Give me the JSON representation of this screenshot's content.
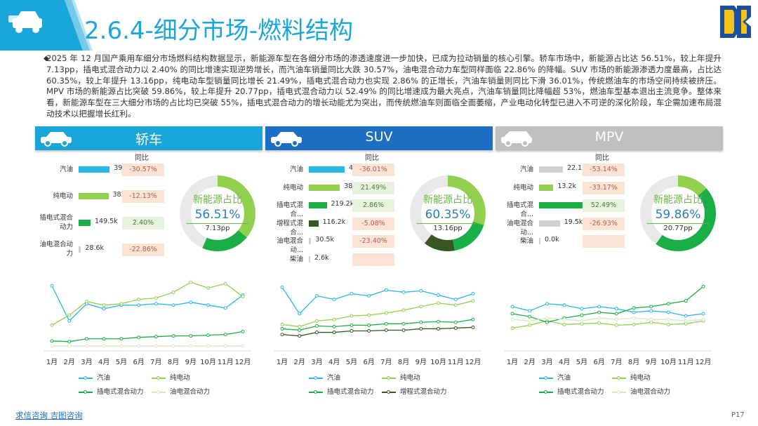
{
  "header": {
    "title": "2.6.4-细分市场-燃料结构"
  },
  "summary": "2025 年 12 月国产乘用车细分市场燃料结构数据显示，新能源车型在各细分市场的渗透速度进一步加快，已成为拉动销量的核心引擎。轿车市场中，新能源占比达 56.51%，较上年提升 7.13pp，插电式混合动力以 2.40% 的同比增速实现逆势增长，而汽油车销量同比大跌 30.57%，油电混合动力车型同样面临 22.86% 的降幅。SUV 市场的新能源渗透力度最高，占比达 60.35%，较上年提升 13.16pp，纯电动车型销量同比增长 21.49%，插电式混合动力也实现 2.86% 的正增长，汽油车销量则同比下滑 36.01%，传统燃油车的市场空间持续被挤压。MPV 市场的新能源占比突破 59.86%，较上年提升 20.77pp，插电式混合动力以 52.49% 的同比增速成为最大亮点，汽油车销量同比降幅超 53%，燃油车型基本退出主流竞争。整体来看，新能源车型在三大细分市场的占比均已突破 55%，插电式混合动力的增长动能尤为突出，而传统燃油车则面临全面萎缩，产业电动化转型已进入不可逆的深化阶段，车企需加速布局混动技术以把握增长红利。",
  "yoy_header": "同比",
  "donut_title": "新能源占比",
  "months": [
    "1月",
    "2月",
    "3月",
    "4月",
    "5月",
    "6月",
    "7月",
    "8月",
    "9月",
    "10月",
    "11月",
    "12月"
  ],
  "footer": {
    "link1": "求信咨询",
    "link2": "吉图咨询",
    "page": "P17"
  },
  "colors": {
    "blue": "#29b6e8",
    "green": "#92d050",
    "dgreen": "#1aae47",
    "darkgreen": "#375623",
    "gray": "#d0d0d0",
    "accent": "#1aa6d9"
  },
  "panels": [
    {
      "title": "轿车",
      "icon": "taxi-icon",
      "band_color": "#1aa6d9",
      "rows": [
        {
          "label": "汽油",
          "value": "395.1k",
          "yoy": "-30.57%",
          "color": "#29b6e8",
          "frac": 0.52
        },
        {
          "label": "纯电动",
          "value": "383.4k",
          "yoy": "-12.13%",
          "color": "#92d050",
          "frac": 0.5
        },
        {
          "label": "插电式混合动力",
          "value": "149.5k",
          "yoy": "2.40%",
          "color": "#1aae47",
          "frac": 0.2
        },
        {
          "label": "油电混合动力",
          "value": "28.6k",
          "yoy": "-22.86%",
          "color": "#d0d0d0",
          "frac": 0.04
        }
      ],
      "donut": {
        "value": "56.51%",
        "sub": "7.13pp",
        "bev": 0.359,
        "phev": 0.206
      },
      "chart_data": {
        "type": "line",
        "x": [
          "1月",
          "2月",
          "3月",
          "4月",
          "5月",
          "6月",
          "7月",
          "8月",
          "9月",
          "10月",
          "11月",
          "12月"
        ],
        "series": [
          {
            "name": "汽油",
            "values": [
              0.87,
              0.38,
              0.62,
              0.55,
              0.6,
              0.6,
              0.62,
              0.6,
              0.64,
              0.6,
              0.56,
              0.74
            ]
          },
          {
            "name": "纯电动",
            "values": [
              0.32,
              0.46,
              0.65,
              0.6,
              0.62,
              0.68,
              0.7,
              0.78,
              0.92,
              0.84,
              0.9,
              0.72
            ]
          },
          {
            "name": "插电式混合动力",
            "values": [
              0.1,
              0.09,
              0.13,
              0.13,
              0.13,
              0.15,
              0.16,
              0.17,
              0.17,
              0.18,
              0.19,
              0.23
            ]
          },
          {
            "name": "油电混合动力",
            "values": [
              0.03,
              0.03,
              0.03,
              0.03,
              0.03,
              0.03,
              0.03,
              0.03,
              0.03,
              0.03,
              0.03,
              0.03
            ]
          }
        ]
      },
      "legend": [
        "汽油",
        "纯电动",
        "插电式混合动力",
        "油电混合动力"
      ]
    },
    {
      "title": "SUV",
      "icon": "suv-icon",
      "band_color": "#1d6fc4",
      "rows": [
        {
          "label": "汽油",
          "value": "437.8k",
          "yoy": "-36.01%",
          "color": "#29b6e8",
          "frac": 0.6
        },
        {
          "label": "纯电动",
          "value": "381.1k",
          "yoy": "21.49%",
          "color": "#92d050",
          "frac": 0.52
        },
        {
          "label": "插电式混合...",
          "value": "219.2k",
          "yoy": "2.86%",
          "color": "#1aae47",
          "frac": 0.3
        },
        {
          "label": "增程式混合...",
          "value": "116.2k",
          "yoy": "-5.08%",
          "color": "#375623",
          "frac": 0.16
        },
        {
          "label": "油电混合动...",
          "value": "30.5k",
          "yoy": "-23.40%",
          "color": "#d0d0d0",
          "frac": 0.04
        },
        {
          "label": "柴油",
          "value": "2.6k",
          "yoy": "",
          "color": "#d0d0d0",
          "frac": 0.005
        }
      ],
      "donut": {
        "value": "60.35%",
        "sub": "13.16pp",
        "bev": 0.3,
        "phev": 0.17,
        "erev": 0.1335
      },
      "chart_data": {
        "type": "line",
        "x": [
          "1月",
          "2月",
          "3月",
          "4月",
          "5月",
          "6月",
          "7月",
          "8月",
          "9月",
          "10月",
          "11月",
          "12月"
        ],
        "series": [
          {
            "name": "汽油",
            "values": [
              0.85,
              0.48,
              0.73,
              0.68,
              0.76,
              0.73,
              0.81,
              0.78,
              0.8,
              0.74,
              0.68,
              0.76
            ]
          },
          {
            "name": "纯电动",
            "values": [
              0.33,
              0.3,
              0.38,
              0.4,
              0.45,
              0.46,
              0.49,
              0.53,
              0.58,
              0.63,
              0.6,
              0.66
            ]
          },
          {
            "name": "插电式混合动力",
            "values": [
              0.27,
              0.25,
              0.31,
              0.3,
              0.32,
              0.32,
              0.34,
              0.34,
              0.36,
              0.37,
              0.36,
              0.4
            ]
          },
          {
            "name": "增程式混合动力",
            "values": [
              0.19,
              0.17,
              0.22,
              0.22,
              0.24,
              0.24,
              0.25,
              0.25,
              0.27,
              0.27,
              0.28,
              0.29
            ]
          }
        ]
      },
      "legend": [
        "汽油",
        "纯电动",
        "插电式混合动力",
        "增程式混合动力"
      ]
    },
    {
      "title": "MPV",
      "icon": "mpv-icon",
      "band_color": "#bfbfbf",
      "rows": [
        {
          "label": "汽油",
          "value": "22.1k",
          "yoy": "-53.14%",
          "color": "#d0d0d0",
          "frac": 0.4
        },
        {
          "label": "纯电动",
          "value": "13.2k",
          "yoy": "-33.17%",
          "color": "#92d050",
          "frac": 0.24
        },
        {
          "label": "插电式混合...",
          "value": "42.9k",
          "yoy": "52.49%",
          "color": "#1aae47",
          "frac": 0.78
        },
        {
          "label": "油电混合动...",
          "value": "19.5k",
          "yoy": "-26.93%",
          "color": "#d0d0d0",
          "frac": 0.35
        },
        {
          "label": "柴油",
          "value": "0.0k",
          "yoy": "",
          "color": "#d0d0d0",
          "frac": 0.0
        }
      ],
      "donut": {
        "value": "59.86%",
        "sub": "20.77pp",
        "bev": 0.135,
        "phev": 0.4636
      },
      "chart_data": {
        "type": "line",
        "x": [
          "1月",
          "2月",
          "3月",
          "4月",
          "5月",
          "6月",
          "7月",
          "8月",
          "9月",
          "10月",
          "11月",
          "12月"
        ],
        "series": [
          {
            "name": "汽油",
            "values": [
              0.58,
              0.52,
              0.62,
              0.6,
              0.55,
              0.58,
              0.55,
              0.5,
              0.52,
              0.5,
              0.45,
              0.48
            ]
          },
          {
            "name": "纯电动",
            "values": [
              0.28,
              0.32,
              0.38,
              0.33,
              0.34,
              0.35,
              0.32,
              0.33,
              0.36,
              0.33,
              0.34,
              0.38
            ]
          },
          {
            "name": "插电式混合动力",
            "values": [
              0.48,
              0.44,
              0.36,
              0.42,
              0.46,
              0.5,
              0.48,
              0.56,
              0.58,
              0.62,
              0.66,
              0.86
            ]
          },
          {
            "name": "油电混合动力",
            "values": [
              0.4,
              0.38,
              0.42,
              0.4,
              0.38,
              0.42,
              0.4,
              0.42,
              0.4,
              0.4,
              0.38,
              0.4
            ]
          }
        ]
      },
      "legend": [
        "汽油",
        "纯电动",
        "插电式混合动力",
        "油电混合动力"
      ]
    }
  ]
}
